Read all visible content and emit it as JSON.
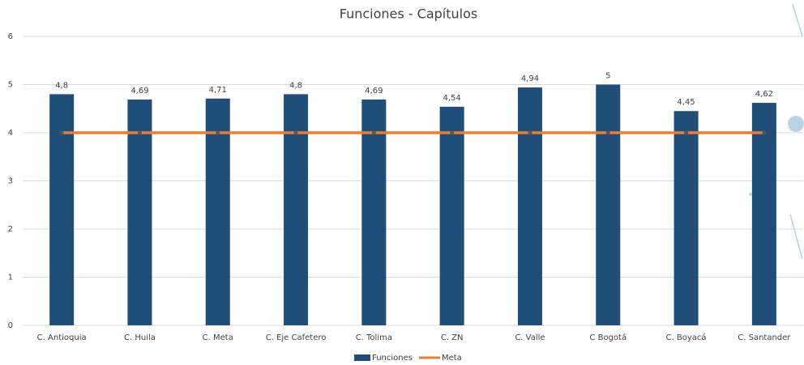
{
  "chart_data": {
    "type": "bar",
    "title": "Funciones - Capítulos",
    "categories": [
      "C. Antioquia",
      "C. Huila",
      "C. Meta",
      "C. Eje Cafetero",
      "C. Tolima",
      "C. ZN",
      "C. Valle",
      "C Bogotá",
      "C. Boyacá",
      "C. Santander"
    ],
    "series": [
      {
        "name": "Funciones",
        "type": "bar",
        "color": "#1f4e79",
        "values": [
          4.8,
          4.69,
          4.71,
          4.8,
          4.69,
          4.54,
          4.94,
          5,
          4.45,
          4.62
        ],
        "value_labels": [
          "4,8",
          "4,69",
          "4,71",
          "4,8",
          "4,69",
          "4,54",
          "4,94",
          "5",
          "4,45",
          "4,62"
        ]
      },
      {
        "name": "Meta",
        "type": "line",
        "color": "#ed7d31",
        "values": [
          4,
          4,
          4,
          4,
          4,
          4,
          4,
          4,
          4,
          4
        ]
      }
    ],
    "ylim": [
      0,
      6
    ],
    "yticks": [
      0,
      1,
      2,
      3,
      4,
      5,
      6
    ],
    "grid": true,
    "legend": "bottom"
  }
}
